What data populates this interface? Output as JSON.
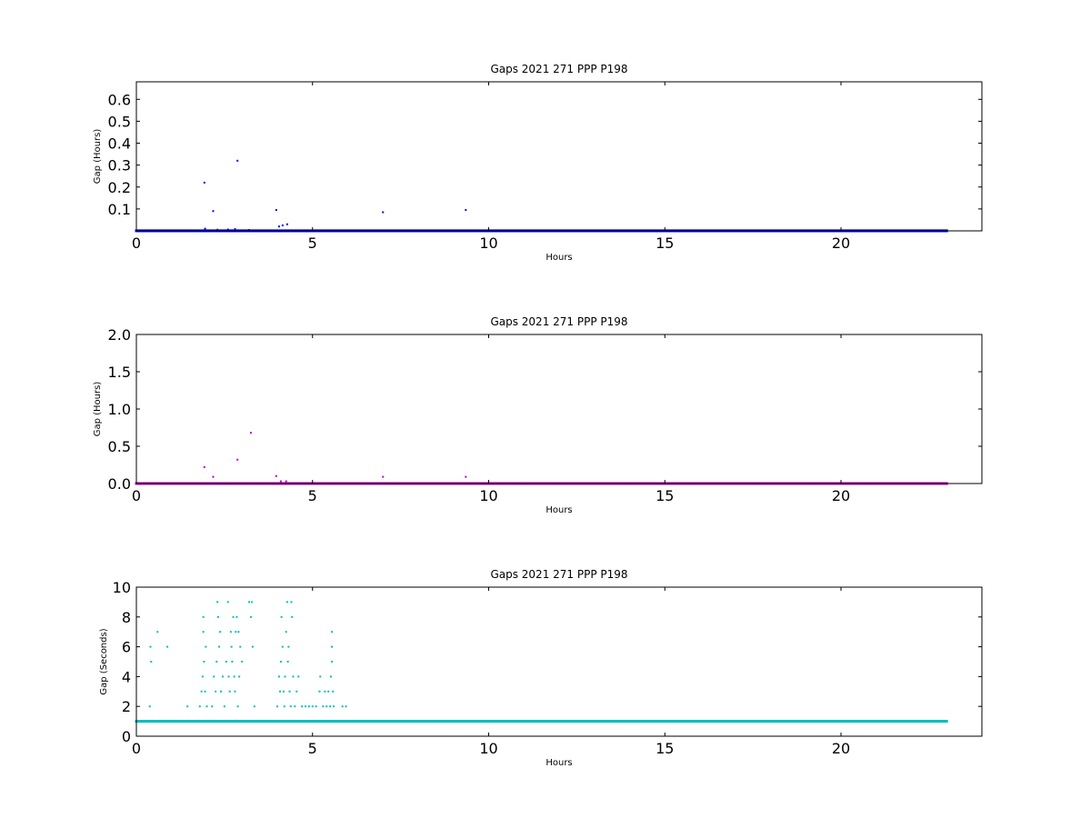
{
  "chart_data": [
    {
      "type": "scatter",
      "title": "Gaps 2021 271 PPP  P198",
      "xlabel": "Hours",
      "ylabel": "Gap (Hours)",
      "xlim": [
        0,
        24
      ],
      "ylim": [
        0,
        0.68
      ],
      "xticks": [
        "0",
        "5",
        "10",
        "15",
        "20"
      ],
      "xtick_values": [
        0,
        5,
        10,
        15,
        20
      ],
      "yticks": [
        "0.1",
        "0.2",
        "0.3",
        "0.4",
        "0.5",
        "0.6"
      ],
      "ytick_values": [
        0.1,
        0.2,
        0.3,
        0.4,
        0.5,
        0.6
      ],
      "grid": false,
      "color": "#0000ff",
      "series": [
        {
          "baseline": {
            "x_start": 0,
            "x_end": 23.0,
            "y": 0.0003,
            "step": 0.04
          },
          "points": [
            {
              "x": 1.93,
              "y": 0.22
            },
            {
              "x": 2.18,
              "y": 0.09
            },
            {
              "x": 2.87,
              "y": 0.32
            },
            {
              "x": 3.97,
              "y": 0.095
            },
            {
              "x": 4.05,
              "y": 0.02
            },
            {
              "x": 4.15,
              "y": 0.025
            },
            {
              "x": 4.28,
              "y": 0.03
            },
            {
              "x": 7.0,
              "y": 0.085
            },
            {
              "x": 9.35,
              "y": 0.095
            },
            {
              "x": 1.95,
              "y": 0.01
            },
            {
              "x": 2.3,
              "y": 0.005
            },
            {
              "x": 2.6,
              "y": 0.006
            },
            {
              "x": 2.8,
              "y": 0.008
            },
            {
              "x": 3.2,
              "y": 0.004
            }
          ]
        }
      ]
    },
    {
      "type": "scatter",
      "title": "Gaps 2021 271 PPP  P198",
      "xlabel": "Hours",
      "ylabel": "Gap (Hours)",
      "xlim": [
        0,
        24
      ],
      "ylim": [
        0,
        2.0
      ],
      "xticks": [
        "0",
        "5",
        "10",
        "15",
        "20"
      ],
      "xtick_values": [
        0,
        5,
        10,
        15,
        20
      ],
      "yticks": [
        "0.0",
        "0.5",
        "1.0",
        "1.5",
        "2.0"
      ],
      "ytick_values": [
        0,
        0.5,
        1.0,
        1.5,
        2.0
      ],
      "grid": false,
      "color": "#bf00bf",
      "series": [
        {
          "baseline": {
            "x_start": 0,
            "x_end": 23.0,
            "y": 0.0003,
            "step": 0.04
          },
          "points": [
            {
              "x": 1.93,
              "y": 0.22
            },
            {
              "x": 2.18,
              "y": 0.09
            },
            {
              "x": 2.87,
              "y": 0.32
            },
            {
              "x": 3.25,
              "y": 0.68
            },
            {
              "x": 3.97,
              "y": 0.1
            },
            {
              "x": 4.1,
              "y": 0.03
            },
            {
              "x": 4.25,
              "y": 0.03
            },
            {
              "x": 7.0,
              "y": 0.09
            },
            {
              "x": 9.35,
              "y": 0.09
            }
          ]
        }
      ]
    },
    {
      "type": "scatter",
      "title": "Gaps 2021 271 PPP  P198",
      "xlabel": "Hours",
      "ylabel": "Gap (Seconds)",
      "xlim": [
        0,
        24
      ],
      "ylim": [
        0,
        10
      ],
      "xticks": [
        "0",
        "5",
        "10",
        "15",
        "20"
      ],
      "xtick_values": [
        0,
        5,
        10,
        15,
        20
      ],
      "yticks": [
        "0",
        "2",
        "4",
        "6",
        "8",
        "10"
      ],
      "ytick_values": [
        0,
        2,
        4,
        6,
        8,
        10
      ],
      "grid": false,
      "color": "#00bfbf",
      "series": [
        {
          "baseline": {
            "x_start": 0,
            "x_end": 23.0,
            "y": 1,
            "step": 0.04
          },
          "points": [
            {
              "x": 0.38,
              "y": 2
            },
            {
              "x": 0.4,
              "y": 6
            },
            {
              "x": 0.42,
              "y": 5
            },
            {
              "x": 0.6,
              "y": 7
            },
            {
              "x": 0.88,
              "y": 6
            },
            {
              "x": 1.45,
              "y": 2
            },
            {
              "x": 1.8,
              "y": 2
            },
            {
              "x": 1.85,
              "y": 3
            },
            {
              "x": 1.88,
              "y": 4
            },
            {
              "x": 1.9,
              "y": 7
            },
            {
              "x": 1.9,
              "y": 8
            },
            {
              "x": 1.92,
              "y": 5
            },
            {
              "x": 1.95,
              "y": 3
            },
            {
              "x": 1.97,
              "y": 6
            },
            {
              "x": 2.0,
              "y": 2
            },
            {
              "x": 2.15,
              "y": 2
            },
            {
              "x": 2.2,
              "y": 4
            },
            {
              "x": 2.25,
              "y": 3
            },
            {
              "x": 2.28,
              "y": 5
            },
            {
              "x": 2.3,
              "y": 9
            },
            {
              "x": 2.32,
              "y": 8
            },
            {
              "x": 2.35,
              "y": 6
            },
            {
              "x": 2.38,
              "y": 7
            },
            {
              "x": 2.4,
              "y": 3
            },
            {
              "x": 2.45,
              "y": 4
            },
            {
              "x": 2.5,
              "y": 2
            },
            {
              "x": 2.55,
              "y": 5
            },
            {
              "x": 2.6,
              "y": 9
            },
            {
              "x": 2.62,
              "y": 4
            },
            {
              "x": 2.65,
              "y": 3
            },
            {
              "x": 2.68,
              "y": 7
            },
            {
              "x": 2.7,
              "y": 6
            },
            {
              "x": 2.72,
              "y": 5
            },
            {
              "x": 2.75,
              "y": 8
            },
            {
              "x": 2.78,
              "y": 4
            },
            {
              "x": 2.8,
              "y": 3
            },
            {
              "x": 2.82,
              "y": 7
            },
            {
              "x": 2.85,
              "y": 8
            },
            {
              "x": 2.88,
              "y": 2
            },
            {
              "x": 2.9,
              "y": 7
            },
            {
              "x": 2.92,
              "y": 4
            },
            {
              "x": 2.95,
              "y": 6
            },
            {
              "x": 3.0,
              "y": 5
            },
            {
              "x": 3.2,
              "y": 9
            },
            {
              "x": 3.25,
              "y": 8
            },
            {
              "x": 3.28,
              "y": 9
            },
            {
              "x": 3.3,
              "y": 6
            },
            {
              "x": 3.35,
              "y": 2
            },
            {
              "x": 4.0,
              "y": 2
            },
            {
              "x": 4.05,
              "y": 4
            },
            {
              "x": 4.08,
              "y": 3
            },
            {
              "x": 4.1,
              "y": 5
            },
            {
              "x": 4.12,
              "y": 8
            },
            {
              "x": 4.15,
              "y": 6
            },
            {
              "x": 4.18,
              "y": 3
            },
            {
              "x": 4.2,
              "y": 2
            },
            {
              "x": 4.22,
              "y": 4
            },
            {
              "x": 4.25,
              "y": 7
            },
            {
              "x": 4.28,
              "y": 9
            },
            {
              "x": 4.3,
              "y": 5
            },
            {
              "x": 4.32,
              "y": 6
            },
            {
              "x": 4.35,
              "y": 3
            },
            {
              "x": 4.38,
              "y": 2
            },
            {
              "x": 4.4,
              "y": 9
            },
            {
              "x": 4.42,
              "y": 8
            },
            {
              "x": 4.45,
              "y": 4
            },
            {
              "x": 4.5,
              "y": 2
            },
            {
              "x": 4.55,
              "y": 3
            },
            {
              "x": 4.6,
              "y": 4
            },
            {
              "x": 4.7,
              "y": 2
            },
            {
              "x": 4.8,
              "y": 2
            },
            {
              "x": 4.9,
              "y": 2
            },
            {
              "x": 5.0,
              "y": 2
            },
            {
              "x": 5.1,
              "y": 2
            },
            {
              "x": 5.2,
              "y": 3
            },
            {
              "x": 5.22,
              "y": 4
            },
            {
              "x": 5.3,
              "y": 2
            },
            {
              "x": 5.35,
              "y": 3
            },
            {
              "x": 5.4,
              "y": 2
            },
            {
              "x": 5.45,
              "y": 3
            },
            {
              "x": 5.5,
              "y": 2
            },
            {
              "x": 5.52,
              "y": 4
            },
            {
              "x": 5.55,
              "y": 5
            },
            {
              "x": 5.55,
              "y": 6
            },
            {
              "x": 5.55,
              "y": 7
            },
            {
              "x": 5.58,
              "y": 3
            },
            {
              "x": 5.6,
              "y": 2
            },
            {
              "x": 5.85,
              "y": 2
            },
            {
              "x": 5.95,
              "y": 2
            }
          ]
        }
      ]
    }
  ]
}
